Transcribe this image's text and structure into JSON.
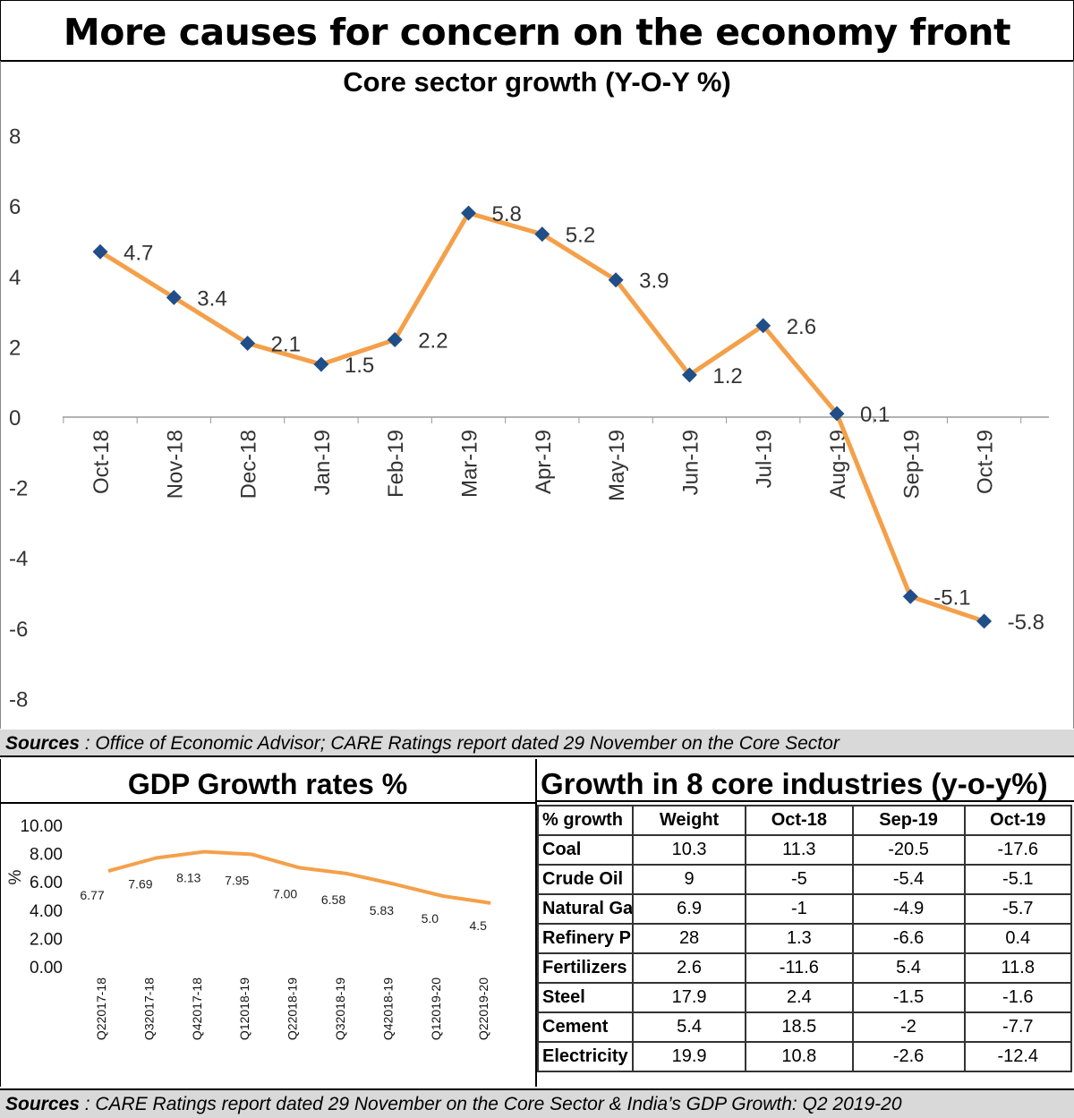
{
  "title": "More causes for concern on the economy front",
  "sources_top": {
    "label": "Sources",
    "text": " : Office of Economic Advisor; CARE Ratings report dated 29 November on the Core Sector"
  },
  "sources_bottom": {
    "label": "Sources",
    "text": " : CARE Ratings report dated 29 November on the Core Sector & India’s GDP Growth: Q2 2019-20"
  },
  "chart_data": [
    {
      "type": "line",
      "title": "Core sector growth (Y-O-Y %)",
      "categories": [
        "Oct-18",
        "Nov-18",
        "Dec-18",
        "Jan-19",
        "Feb-19",
        "Mar-19",
        "Apr-19",
        "May-19",
        "Jun-19",
        "Jul-19",
        "Aug-19",
        "Sep-19",
        "Oct-19"
      ],
      "values": [
        4.7,
        3.4,
        2.1,
        1.5,
        2.2,
        5.8,
        5.2,
        3.9,
        1.2,
        2.6,
        0.1,
        -5.1,
        -5.8
      ],
      "labels": [
        "4.7",
        "3.4",
        "2.1",
        "1.5",
        "2.2",
        "5.8",
        "5.2",
        "3.9",
        "1.2",
        "2.6",
        "0.1",
        "-5.1",
        "-5.8"
      ],
      "yticks": [
        "8",
        "6",
        "4",
        "2",
        "0",
        "-2",
        "-4",
        "-6",
        "-8"
      ],
      "ylim": [
        -8,
        8
      ],
      "xlabel": "",
      "ylabel": "",
      "line_color": "#f4a04a",
      "marker_color": "#1f4e89"
    },
    {
      "type": "line",
      "title": "GDP Growth rates %",
      "categories": [
        "Q22017-18",
        "Q32017-18",
        "Q42017-18",
        "Q12018-19",
        "Q22018-19",
        "Q32018-19",
        "Q42018-19",
        "Q12019-20",
        "Q22019-20"
      ],
      "values": [
        6.77,
        7.69,
        8.13,
        7.95,
        7.0,
        6.58,
        5.83,
        5.0,
        4.5
      ],
      "labels": [
        "6.77",
        "7.69",
        "8.13",
        "7.95",
        "7.00",
        "6.58",
        "5.83",
        "5.0",
        "4.5"
      ],
      "yticks": [
        "10.00",
        "8.00",
        "6.00",
        "4.00",
        "2.00",
        "0.00"
      ],
      "ylim": [
        0,
        10
      ],
      "xlabel": "",
      "ylabel": "%",
      "line_color": "#f4a04a"
    }
  ],
  "table": {
    "title": "Growth in 8 core industries (y-o-y%)",
    "headers": [
      "% growth",
      "Weight",
      "Oct-18",
      "Sep-19",
      "Oct-19"
    ],
    "rows": [
      [
        "Coal",
        "10.3",
        "11.3",
        "-20.5",
        "-17.6"
      ],
      [
        "Crude Oil",
        "9",
        "-5",
        "-5.4",
        "-5.1"
      ],
      [
        "Natural Gas",
        "6.9",
        "-1",
        "-4.9",
        "-5.7"
      ],
      [
        "Refinery Products",
        "28",
        "1.3",
        "-6.6",
        "0.4"
      ],
      [
        "Fertilizers",
        "2.6",
        "-11.6",
        "5.4",
        "11.8"
      ],
      [
        "Steel",
        "17.9",
        "2.4",
        "-1.5",
        "-1.6"
      ],
      [
        "Cement",
        "5.4",
        "18.5",
        "-2",
        "-7.7"
      ],
      [
        "Electricity",
        "19.9",
        "10.8",
        "-2.6",
        "-12.4"
      ]
    ]
  }
}
